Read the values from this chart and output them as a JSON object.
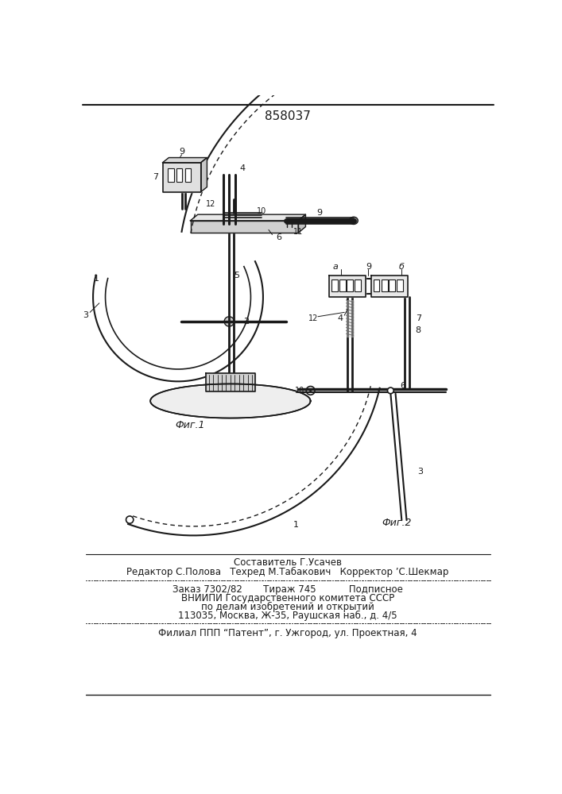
{
  "patent_number": "858037",
  "fig1_caption": "Фиг.1",
  "fig2_caption": "Фиг.2",
  "line1": "Составитель Г.Усачев",
  "line2": "Редактор С.Полова   Техред М.Табакович   Корректор ’С.Шекмар",
  "line3": "Заказ 7302/82       Тираж 745           Подписное",
  "line4": "ВНИИПИ Государственного комитета СССР",
  "line5": "по делам изобретений и открытий",
  "line6": "113035, Москва, Ж-35, Раушская наб., д. 4/5",
  "line7": "Филиал ППП “Патент”, г. Ужгород, ул. Проектная, 4",
  "bg_color": "#ffffff",
  "line_color": "#1a1a1a"
}
